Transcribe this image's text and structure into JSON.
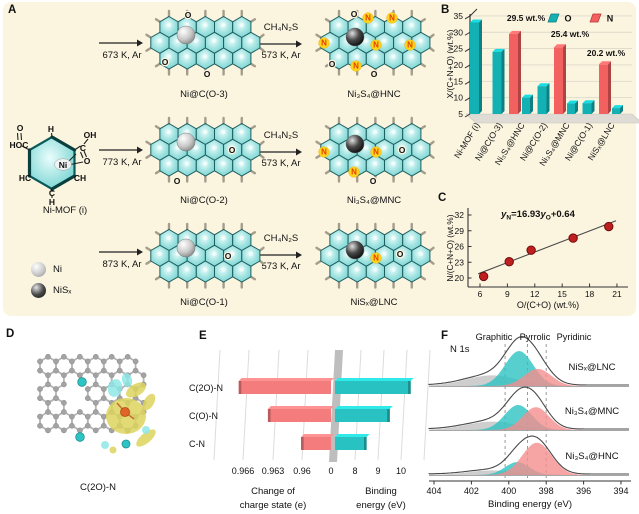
{
  "colors": {
    "cream_bg": "#fbf5e0",
    "teal": "#14b1b4",
    "red": "#f2605f",
    "salmon": "#f57c7c",
    "teal_e": "#28c2c2",
    "point_red": "#c01f1f",
    "hex_teal": "#7cd8d6",
    "n_badge": "#ffd41e",
    "n_text": "#e24000"
  },
  "panels": {
    "a": "A",
    "b": "B",
    "c": "C",
    "d": "D",
    "e": "E",
    "f": "F"
  },
  "panelA": {
    "molecule": {
      "caption": "Ni-MOF (i)",
      "labels": [
        "O",
        "HOC",
        "H",
        "OH",
        "C",
        "O",
        "Ni",
        "HC",
        "CH",
        "C",
        "H"
      ]
    },
    "legend": [
      {
        "label": "Ni"
      },
      {
        "label": "NiSₓ"
      }
    ],
    "rows": [
      {
        "temp": "673 K, Ar",
        "intermediate": "Ni@C(O-3)",
        "reagent": "CH₄N₂S",
        "cond": "573 K, Ar",
        "product": "Ni₃S₄@HNC"
      },
      {
        "temp": "773 K, Ar",
        "intermediate": "Ni@C(O-2)",
        "reagent": "CH₄N₂S",
        "cond": "573 K, Ar",
        "product": "Ni₃S₄@MNC"
      },
      {
        "temp": "873 K, Ar",
        "intermediate": "Ni@C(O-1)",
        "reagent": "CH₄N₂S",
        "cond": "573 K, Ar",
        "product": "NiSₓ@LNC"
      }
    ],
    "lattices": [
      {
        "id": "latt-o3",
        "sphere": "ni",
        "o": [
          [
            40,
            5
          ],
          [
            17,
            52
          ],
          [
            59,
            64
          ]
        ],
        "n": []
      },
      {
        "id": "latt-hnc",
        "sphere": "nis",
        "o": [
          [
            36,
            4
          ],
          [
            14,
            54
          ],
          [
            56,
            64
          ]
        ],
        "n": [
          [
            50,
            8
          ],
          [
            74,
            8
          ],
          [
            6,
            33
          ],
          [
            58,
            35
          ],
          [
            92,
            35
          ],
          [
            38,
            56
          ]
        ]
      },
      {
        "id": "latt-o2",
        "sphere": "ni",
        "o": [
          [
            84,
            33
          ],
          [
            29,
            64
          ]
        ],
        "n": []
      },
      {
        "id": "latt-mnc",
        "sphere": "nis",
        "o": [
          [
            84,
            33
          ],
          [
            55,
            64
          ]
        ],
        "n": [
          [
            6,
            35
          ],
          [
            58,
            35
          ],
          [
            36,
            55
          ]
        ]
      },
      {
        "id": "latt-o1",
        "sphere": "ni",
        "o": [
          [
            80,
            33
          ]
        ],
        "n": []
      },
      {
        "id": "latt-lnc",
        "sphere": "nis",
        "o": [
          [
            82,
            31
          ]
        ],
        "n": [
          [
            58,
            35
          ]
        ]
      }
    ]
  },
  "panelD": {
    "caption": "C(2O)-N"
  },
  "chart_data": [
    {
      "id": "B",
      "type": "bar",
      "ylabel": "X/(C+N+O) (wt.%)",
      "ylim": [
        5,
        35
      ],
      "yticks": [
        5,
        10,
        15,
        20,
        25,
        30,
        35
      ],
      "categories": [
        "Ni-MOF (i)",
        "Ni@C(O-3)",
        "Ni₃S₄@HNC",
        "Ni@C(O-2)",
        "Ni₃S₄@MNC",
        "Ni@C(O-1)",
        "NiSₓ@LNC"
      ],
      "series": [
        {
          "name": "O",
          "color": "#14b1b4",
          "values": [
            33,
            24,
            10,
            13.5,
            8.2,
            8.3,
            6.8
          ]
        },
        {
          "name": "N",
          "color": "#f2605f",
          "values": [
            null,
            null,
            29.5,
            null,
            25.4,
            null,
            20.2
          ]
        }
      ],
      "annotations": [
        "29.5 wt.%",
        "25.4 wt.%",
        "20.2 wt.%"
      ],
      "legend_position": "top-right",
      "grid": true
    },
    {
      "id": "C",
      "type": "scatter",
      "xlabel": "O/(C+O) (wt.%)",
      "ylabel": "N/(C+N+O) (wt.%)",
      "xticks": [
        6,
        9,
        12,
        15,
        18,
        21
      ],
      "yticks": [
        20,
        23,
        26,
        29,
        32
      ],
      "xlim": [
        5,
        22
      ],
      "ylim": [
        19,
        32
      ],
      "x": [
        6.4,
        9.2,
        11.6,
        16.2,
        20.1
      ],
      "y": [
        20.3,
        23.1,
        25.3,
        27.6,
        29.8
      ],
      "fit_line": {
        "x1": 5.8,
        "y1": 20.8,
        "x2": 20.9,
        "y2": 30.9
      },
      "equation_parts": [
        "y",
        "N",
        "=16.93",
        "y",
        "O",
        "+0.64"
      ],
      "point_color": "#c01f1f"
    },
    {
      "id": "E",
      "type": "bar",
      "orientation": "horizontal-diverging",
      "categories": [
        "C(2O)-N",
        "C(O)-N",
        "C-N"
      ],
      "series": [
        {
          "name": "Change of charge state (e)",
          "side": "left",
          "color": "#f57c7c",
          "values": [
            0.9665,
            0.9635,
            0.9601
          ]
        },
        {
          "name": "Binding energy (eV)",
          "side": "right",
          "color": "#28c2c2",
          "values": [
            10.4,
            9.5,
            8.5
          ]
        }
      ],
      "left_ticks": [
        "0.966",
        "0.963",
        "0.96"
      ],
      "center_tick": "0",
      "right_ticks": [
        "8",
        "9",
        "10"
      ],
      "xlabel_left": [
        "Change of",
        "charge state (e)"
      ],
      "xlabel_right": [
        "Binding",
        "energy (eV)"
      ]
    },
    {
      "id": "F",
      "type": "area",
      "subtitle": "N 1s",
      "xlabel": "Binding energy (eV)",
      "xticks": [
        404,
        402,
        400,
        398,
        396,
        394
      ],
      "x_reversed": true,
      "component_labels": [
        "Graphitic",
        "Pyrrolic",
        "Pyridinic"
      ],
      "dashed_lines": [
        400.2,
        399.0,
        398.0
      ],
      "colors": {
        "graphitic": "#b9b9b9",
        "pyrrolic": "#2ec3c3",
        "pyridinic": "#f58d8d",
        "envelope": "#4a4a4a"
      },
      "spectra": [
        {
          "name": "NiSₓ@LNC",
          "peaks": {
            "graphitic": {
              "center": 400.9,
              "amp": 0.28,
              "sigma": 1.4
            },
            "pyrrolic": {
              "center": 399.45,
              "amp": 0.92,
              "sigma": 0.75
            },
            "pyridinic": {
              "center": 398.45,
              "amp": 0.45,
              "sigma": 0.72
            }
          }
        },
        {
          "name": "Ni₃S₄@MNC",
          "peaks": {
            "graphitic": {
              "center": 400.9,
              "amp": 0.22,
              "sigma": 1.4
            },
            "pyrrolic": {
              "center": 399.5,
              "amp": 0.66,
              "sigma": 0.72
            },
            "pyridinic": {
              "center": 398.55,
              "amp": 0.6,
              "sigma": 0.7
            }
          }
        },
        {
          "name": "Ni₃S₄@HNC",
          "peaks": {
            "graphitic": {
              "center": 400.9,
              "amp": 0.12,
              "sigma": 1.3
            },
            "pyrrolic": {
              "center": 399.55,
              "amp": 0.34,
              "sigma": 0.65
            },
            "pyridinic": {
              "center": 398.5,
              "amp": 0.85,
              "sigma": 0.78
            }
          }
        }
      ]
    }
  ]
}
